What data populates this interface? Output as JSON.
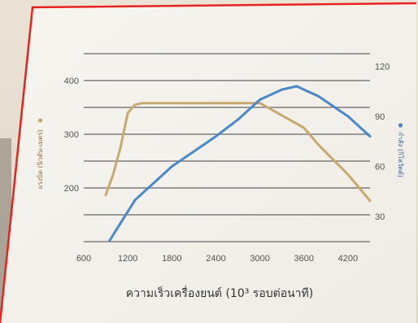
{
  "chart_data": {
    "type": "line",
    "x_title": "ความเร็วเครื่องยนต์ (10³ รอบต่อนาที)",
    "x_ticks": [
      "600",
      "1200",
      "1800",
      "2400",
      "3000",
      "3600",
      "4200"
    ],
    "x_range": [
      600,
      4500
    ],
    "left_axis": {
      "label": "แรงบิด (นิวตัน-เมตร)",
      "ticks": [
        "200",
        "300",
        "400"
      ],
      "range": [
        100,
        450
      ]
    },
    "right_axis": {
      "label": "กำลัง (กิโลวัตต์)",
      "ticks": [
        "30",
        "60",
        "90",
        "120"
      ],
      "range": [
        15,
        127.5
      ]
    },
    "grid": true,
    "series": [
      {
        "name": "แรงบิด (นิวตัน-เมตร)",
        "axis": "left",
        "color": "#c9a870",
        "x": [
          900,
          1000,
          1100,
          1200,
          1300,
          1400,
          1800,
          2400,
          3000,
          3600,
          3800,
          4200,
          4500
        ],
        "y": [
          187,
          225,
          275,
          340,
          355,
          358,
          358,
          358,
          358,
          312,
          280,
          225,
          176
        ]
      },
      {
        "name": "กำลัง (กิโลวัตต์)",
        "axis": "right",
        "color": "#4a88c8",
        "x": [
          950,
          1100,
          1300,
          1600,
          1800,
          2100,
          2400,
          2700,
          3000,
          3300,
          3500,
          3800,
          4200,
          4500
        ],
        "y": [
          15.5,
          26,
          40,
          52,
          60,
          69,
          78,
          88,
          100,
          106,
          108,
          102,
          90,
          78
        ]
      }
    ],
    "legend_markers": [
      {
        "series": "แรงบิด (นิวตัน-เมตร)",
        "color": "#c9a870"
      },
      {
        "series": "กำลัง (กิโลวัตต์)",
        "color": "#4a88c8"
      }
    ]
  },
  "colors": {
    "frame": "#e8231f",
    "plot_bg": "#f4f1eb",
    "gridline": "#7c7c7c"
  }
}
